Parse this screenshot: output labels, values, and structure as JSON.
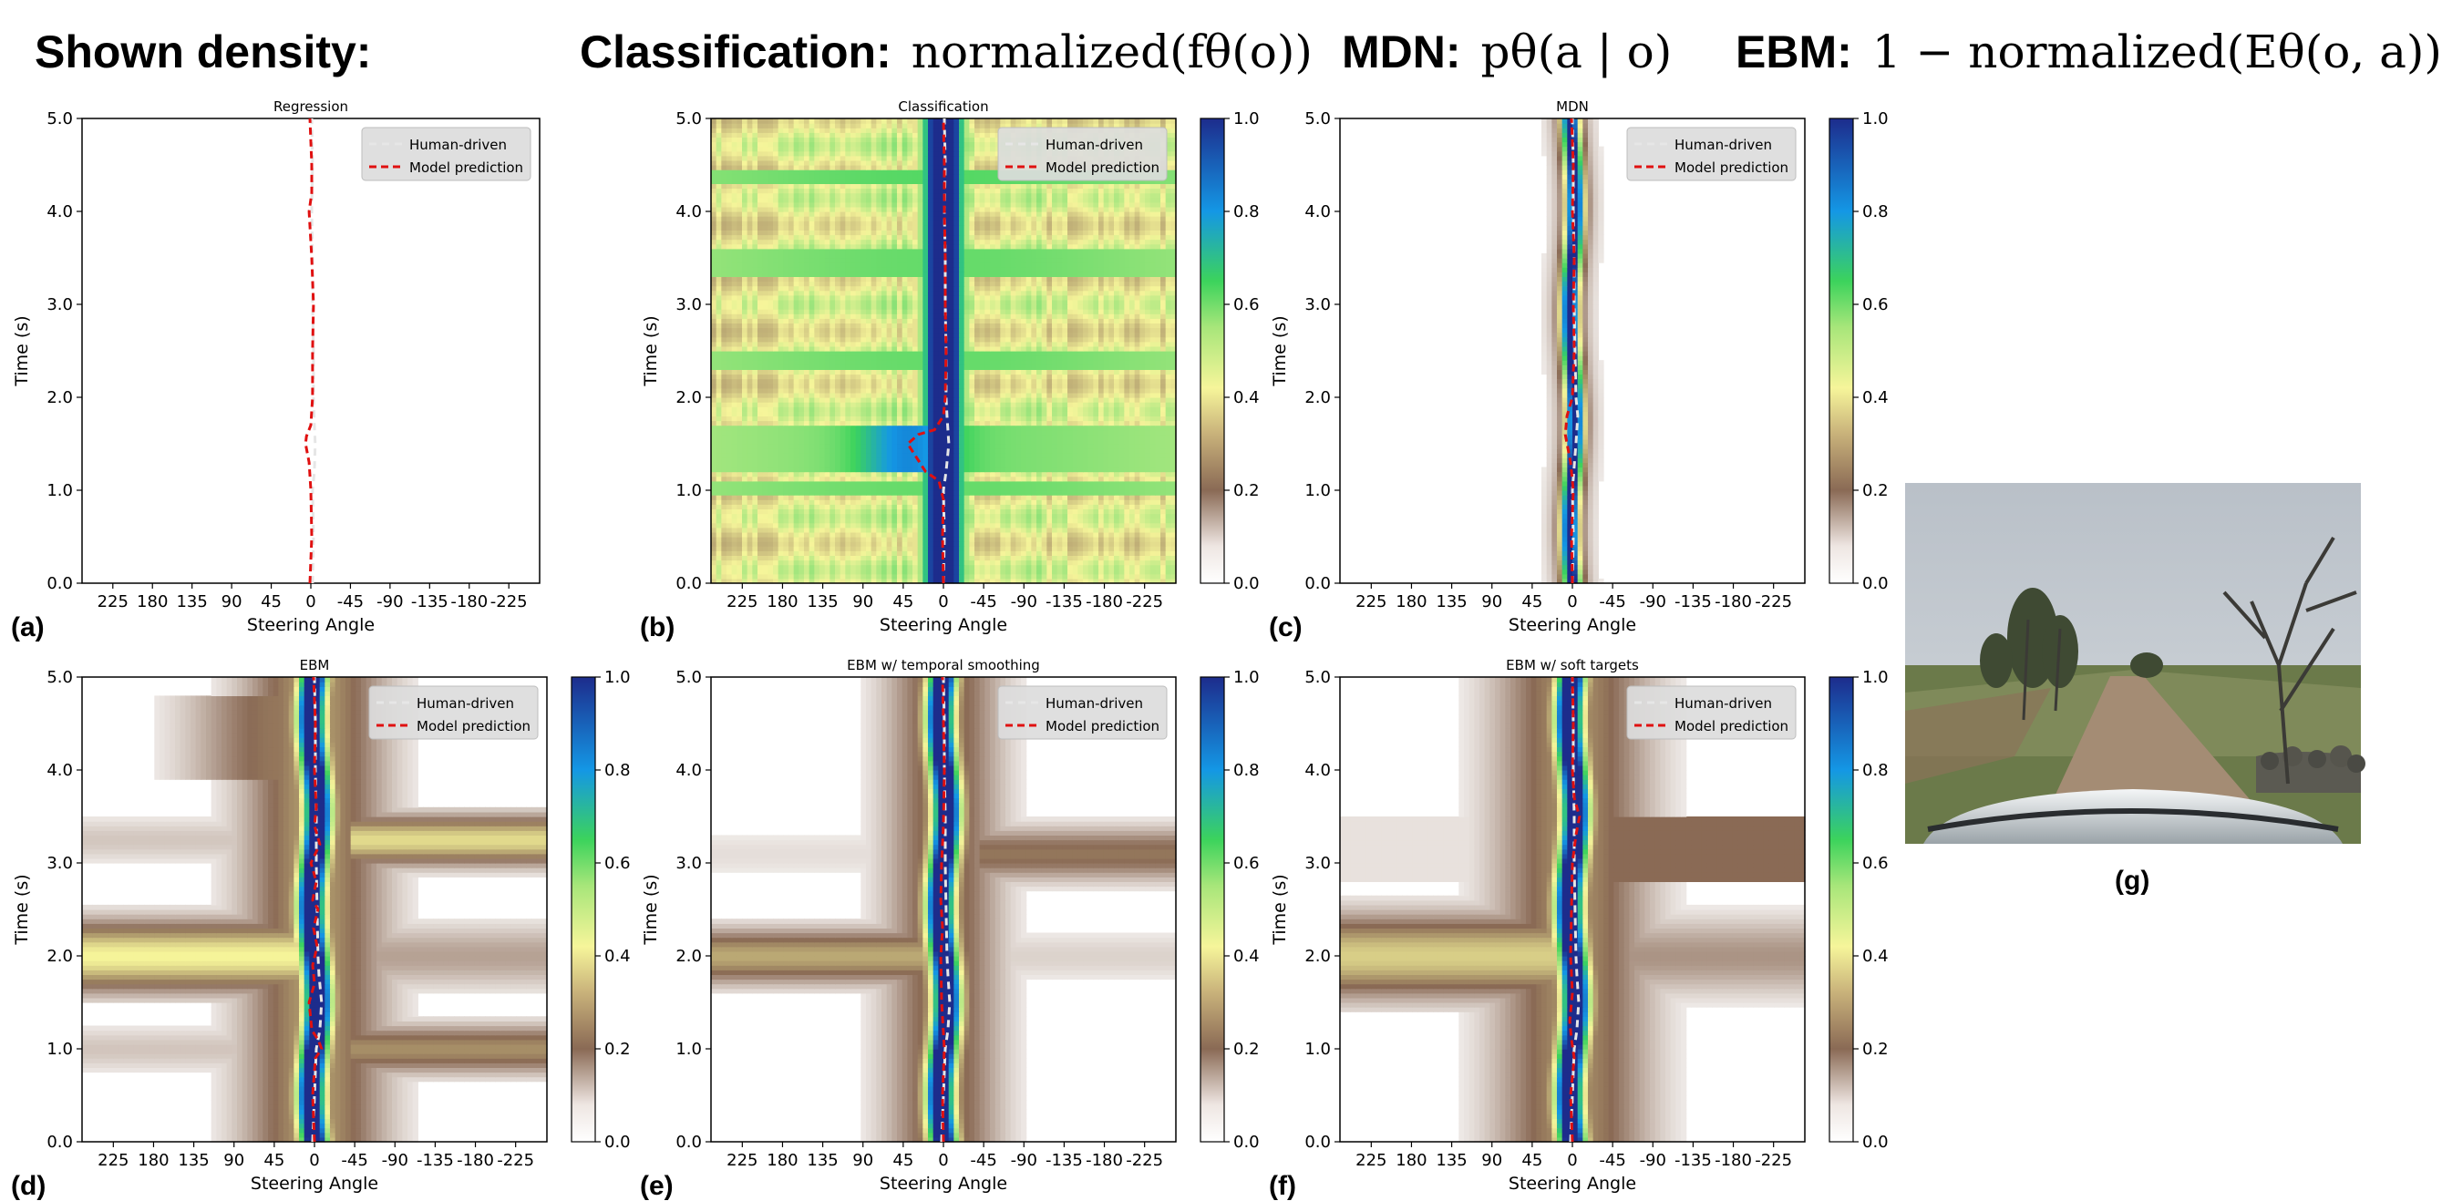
{
  "header": {
    "shown_density": "Shown density:",
    "classification_label": "Classification:",
    "classification_formula": "normalized(fθ(o))",
    "mdn_label": "MDN:",
    "mdn_formula": "pθ(a | o)",
    "ebm_label": "EBM:",
    "ebm_formula": "1 − normalized(Eθ(o, a))"
  },
  "photo_label": "(g)",
  "colorbar": {
    "ticks": [
      "0.0",
      "0.2",
      "0.4",
      "0.6",
      "0.8",
      "1.0"
    ],
    "colormap": [
      "#ffffff",
      "#8a6a55",
      "#f6f59a",
      "#3cd35c",
      "#1497e5",
      "#1d2c8c"
    ]
  },
  "chart_data": [
    {
      "panel": "(a)",
      "type": "line",
      "title": "Regression",
      "xlabel": "Steering Angle",
      "ylabel": "Time (s)",
      "x_ticks": [
        "225",
        "180",
        "135",
        "90",
        "45",
        "0",
        "-45",
        "-90",
        "-135",
        "-180",
        "-225"
      ],
      "y_ticks": [
        "0.0",
        "1.0",
        "2.0",
        "3.0",
        "4.0",
        "5.0"
      ],
      "xlim": [
        260,
        -260
      ],
      "ylim": [
        0,
        5
      ],
      "heatmap": "none",
      "legend": [
        "Human-driven",
        "Model prediction"
      ],
      "series": [
        {
          "name": "Human-driven",
          "time": [
            0,
            0.5,
            1.0,
            1.2,
            1.5,
            1.7,
            2.0,
            2.5,
            3.0,
            3.5,
            4.0,
            4.5,
            5.0
          ],
          "angle": [
            -2,
            -3,
            -2,
            -4,
            -5,
            -4,
            -3,
            -3,
            -2,
            -2,
            -1,
            -2,
            -1
          ]
        },
        {
          "name": "Model prediction",
          "time": [
            0,
            0.5,
            1.0,
            1.3,
            1.5,
            1.58,
            1.7,
            2.0,
            2.5,
            3.0,
            3.5,
            4.0,
            4.2,
            4.5,
            5.0
          ],
          "angle": [
            1,
            -1,
            0,
            2,
            6,
            5,
            0,
            -2,
            -2,
            -3,
            -1,
            2,
            -1,
            -1,
            1
          ]
        }
      ]
    },
    {
      "panel": "(b)",
      "type": "heatmap",
      "title": "Classification",
      "xlabel": "Steering Angle",
      "ylabel": "Time (s)",
      "x_ticks": [
        "225",
        "180",
        "135",
        "90",
        "45",
        "0",
        "-45",
        "-90",
        "-135",
        "-180",
        "-225"
      ],
      "y_ticks": [
        "0.0",
        "1.0",
        "2.0",
        "3.0",
        "4.0",
        "5.0"
      ],
      "xlim": [
        260,
        -260
      ],
      "ylim": [
        0,
        5
      ],
      "heatmap": "classification",
      "legend": [
        "Human-driven",
        "Model prediction"
      ],
      "series": [
        {
          "name": "Human-driven",
          "time": [
            0,
            0.5,
            1.0,
            1.2,
            1.5,
            1.8,
            2.0,
            2.5,
            3.0,
            3.5,
            4.0,
            4.5,
            5.0
          ],
          "angle": [
            0,
            -1,
            0,
            -3,
            -6,
            -4,
            -3,
            -3,
            -2,
            -2,
            -1,
            -2,
            -1
          ]
        },
        {
          "name": "Model prediction",
          "time": [
            0,
            0.5,
            0.9,
            1.1,
            1.2,
            1.35,
            1.5,
            1.6,
            1.65,
            1.8,
            2.0,
            2.5,
            3.0,
            3.5,
            4.0,
            4.5,
            5.0
          ],
          "angle": [
            0,
            1,
            0,
            5,
            20,
            30,
            40,
            28,
            10,
            0,
            -2,
            -3,
            -2,
            -2,
            -1,
            -1,
            0
          ]
        }
      ]
    },
    {
      "panel": "(c)",
      "type": "heatmap",
      "title": "MDN",
      "xlabel": "Steering Angle",
      "ylabel": "Time (s)",
      "x_ticks": [
        "225",
        "180",
        "135",
        "90",
        "45",
        "0",
        "-45",
        "-90",
        "-135",
        "-180",
        "-225"
      ],
      "y_ticks": [
        "0.0",
        "1.0",
        "2.0",
        "3.0",
        "4.0",
        "5.0"
      ],
      "xlim": [
        260,
        -260
      ],
      "ylim": [
        0,
        5
      ],
      "heatmap": "mdn",
      "legend": [
        "Human-driven",
        "Model prediction"
      ],
      "series": [
        {
          "name": "Human-driven",
          "time": [
            0,
            0.5,
            1.0,
            1.5,
            1.8,
            2.0,
            2.5,
            3.0,
            3.5,
            4.0,
            4.5,
            5.0
          ],
          "angle": [
            0,
            -1,
            0,
            -4,
            -6,
            -4,
            -3,
            -2,
            -2,
            -1,
            -1,
            0
          ]
        },
        {
          "name": "Model prediction",
          "time": [
            0,
            0.5,
            1.0,
            1.3,
            1.6,
            1.8,
            2.0,
            2.5,
            3.0,
            3.5,
            4.0,
            4.5,
            5.0
          ],
          "angle": [
            0,
            1,
            -1,
            2,
            8,
            6,
            0,
            -2,
            -1,
            -2,
            0,
            -1,
            1
          ]
        }
      ]
    },
    {
      "panel": "(d)",
      "type": "heatmap",
      "title": "EBM",
      "xlabel": "Steering Angle",
      "ylabel": "Time (s)",
      "x_ticks": [
        "225",
        "180",
        "135",
        "90",
        "45",
        "0",
        "-45",
        "-90",
        "-135",
        "-180",
        "-225"
      ],
      "y_ticks": [
        "0.0",
        "1.0",
        "2.0",
        "3.0",
        "4.0",
        "5.0"
      ],
      "xlim": [
        260,
        -260
      ],
      "ylim": [
        0,
        5
      ],
      "heatmap": "ebm",
      "legend": [
        "Human-driven",
        "Model prediction"
      ],
      "series": [
        {
          "name": "Human-driven",
          "time": [
            0,
            0.5,
            1.0,
            1.2,
            1.5,
            1.8,
            2.0,
            2.5,
            3.0,
            3.5,
            4.0,
            4.5,
            5.0
          ],
          "angle": [
            2,
            0,
            -2,
            -6,
            -8,
            -5,
            -4,
            -3,
            -2,
            -2,
            -1,
            -1,
            0
          ]
        },
        {
          "name": "Model prediction",
          "time": [
            0,
            0.5,
            0.9,
            1.0,
            1.1,
            1.2,
            1.5,
            1.7,
            1.9,
            2.1,
            2.3,
            2.5,
            2.6,
            2.8,
            3.0,
            3.2,
            3.4,
            3.6,
            4.0,
            4.5,
            5.0
          ],
          "angle": [
            0,
            2,
            -1,
            -8,
            -4,
            3,
            6,
            0,
            2,
            -3,
            1,
            -4,
            2,
            -2,
            4,
            -6,
            0,
            -2,
            0,
            -1,
            1
          ]
        }
      ]
    },
    {
      "panel": "(e)",
      "type": "heatmap",
      "title": "EBM w/ temporal smoothing",
      "xlabel": "Steering Angle",
      "ylabel": "Time (s)",
      "x_ticks": [
        "225",
        "180",
        "135",
        "90",
        "45",
        "0",
        "-45",
        "-90",
        "-135",
        "-180",
        "-225"
      ],
      "y_ticks": [
        "0.0",
        "1.0",
        "2.0",
        "3.0",
        "4.0",
        "5.0"
      ],
      "xlim": [
        260,
        -260
      ],
      "ylim": [
        0,
        5
      ],
      "heatmap": "ebm_smooth",
      "legend": [
        "Human-driven",
        "Model prediction"
      ],
      "series": [
        {
          "name": "Human-driven",
          "time": [
            0,
            0.5,
            1.0,
            1.2,
            1.5,
            1.8,
            2.0,
            2.5,
            3.0,
            3.5,
            4.0,
            4.5,
            5.0
          ],
          "angle": [
            2,
            0,
            -2,
            -5,
            -7,
            -5,
            -4,
            -3,
            -2,
            -2,
            -1,
            -1,
            0
          ]
        },
        {
          "name": "Model prediction",
          "time": [
            0,
            0.5,
            1.0,
            1.5,
            2.0,
            2.3,
            2.6,
            3.0,
            3.4,
            4.0,
            4.5,
            5.0
          ],
          "angle": [
            0,
            1,
            -1,
            2,
            3,
            1,
            3,
            2,
            0,
            -1,
            0,
            1
          ]
        }
      ]
    },
    {
      "panel": "(f)",
      "type": "heatmap",
      "title": "EBM w/ soft targets",
      "xlabel": "Steering Angle",
      "ylabel": "Time (s)",
      "x_ticks": [
        "225",
        "180",
        "135",
        "90",
        "45",
        "0",
        "-45",
        "-90",
        "-135",
        "-180",
        "-225"
      ],
      "y_ticks": [
        "0.0",
        "1.0",
        "2.0",
        "3.0",
        "4.0",
        "5.0"
      ],
      "xlim": [
        260,
        -260
      ],
      "ylim": [
        0,
        5
      ],
      "heatmap": "ebm_soft",
      "legend": [
        "Human-driven",
        "Model prediction"
      ],
      "series": [
        {
          "name": "Human-driven",
          "time": [
            0,
            0.5,
            1.0,
            1.2,
            1.5,
            1.8,
            2.0,
            2.5,
            3.0,
            3.5,
            4.0,
            4.5,
            5.0
          ],
          "angle": [
            2,
            0,
            -2,
            -5,
            -7,
            -5,
            -4,
            -3,
            -2,
            -2,
            -1,
            -1,
            0
          ]
        },
        {
          "name": "Model prediction",
          "time": [
            0,
            0.5,
            0.9,
            1.1,
            1.3,
            1.6,
            2.0,
            2.5,
            3.0,
            3.3,
            3.5,
            3.7,
            4.0,
            4.5,
            5.0
          ],
          "angle": [
            0,
            2,
            -2,
            1,
            3,
            0,
            2,
            1,
            0,
            -4,
            -8,
            -2,
            0,
            -1,
            0
          ]
        }
      ]
    }
  ]
}
